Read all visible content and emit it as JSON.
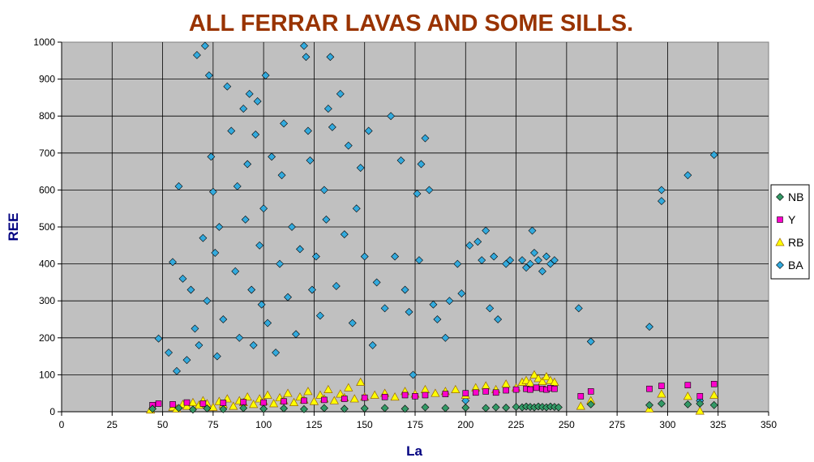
{
  "colors": {
    "title": "#993300",
    "axis_title": "#000080",
    "plot_bg": "#c0c0c0",
    "grid": "#000000",
    "NB": "#339966",
    "Y": "#ff00cc",
    "RB": "#ffff00",
    "BA": "#33aadd"
  },
  "chart_data": {
    "type": "scatter",
    "title": "ALL FERRAR LAVAS AND SOME SILLS.",
    "xlabel": "La",
    "ylabel": "REE",
    "xlim": [
      0,
      350
    ],
    "ylim": [
      0,
      1000
    ],
    "x_ticks": [
      "0",
      "25",
      "50",
      "75",
      "100",
      "125",
      "150",
      "175",
      "200",
      "225",
      "250",
      "275",
      "300",
      "325",
      "350"
    ],
    "y_ticks": [
      "0",
      "100",
      "200",
      "300",
      "400",
      "500",
      "600",
      "700",
      "800",
      "900",
      "1000"
    ],
    "grid": true,
    "legend_position": "right",
    "series": [
      {
        "name": "NB",
        "marker": "diamond",
        "points": [
          [
            45,
            8
          ],
          [
            58,
            10
          ],
          [
            65,
            6
          ],
          [
            72,
            9
          ],
          [
            80,
            7
          ],
          [
            90,
            10
          ],
          [
            100,
            8
          ],
          [
            110,
            9
          ],
          [
            120,
            7
          ],
          [
            130,
            10
          ],
          [
            140,
            8
          ],
          [
            150,
            9
          ],
          [
            160,
            10
          ],
          [
            170,
            8
          ],
          [
            180,
            12
          ],
          [
            190,
            10
          ],
          [
            200,
            11
          ],
          [
            210,
            10
          ],
          [
            215,
            12
          ],
          [
            220,
            11
          ],
          [
            225,
            13
          ],
          [
            228,
            12
          ],
          [
            230,
            14
          ],
          [
            232,
            13
          ],
          [
            234,
            12
          ],
          [
            236,
            14
          ],
          [
            238,
            13
          ],
          [
            240,
            12
          ],
          [
            242,
            14
          ],
          [
            244,
            13
          ],
          [
            246,
            12
          ],
          [
            262,
            20
          ],
          [
            291,
            18
          ],
          [
            297,
            22
          ],
          [
            310,
            20
          ],
          [
            316,
            22
          ],
          [
            323,
            18
          ]
        ]
      },
      {
        "name": "Y",
        "marker": "square",
        "points": [
          [
            45,
            18
          ],
          [
            48,
            22
          ],
          [
            55,
            20
          ],
          [
            62,
            25
          ],
          [
            70,
            22
          ],
          [
            80,
            24
          ],
          [
            90,
            26
          ],
          [
            100,
            25
          ],
          [
            110,
            28
          ],
          [
            120,
            30
          ],
          [
            130,
            32
          ],
          [
            140,
            35
          ],
          [
            150,
            38
          ],
          [
            160,
            40
          ],
          [
            170,
            45
          ],
          [
            175,
            42
          ],
          [
            180,
            45
          ],
          [
            190,
            48
          ],
          [
            200,
            50
          ],
          [
            205,
            52
          ],
          [
            210,
            55
          ],
          [
            215,
            52
          ],
          [
            220,
            58
          ],
          [
            225,
            60
          ],
          [
            230,
            62
          ],
          [
            232,
            60
          ],
          [
            235,
            65
          ],
          [
            238,
            62
          ],
          [
            240,
            60
          ],
          [
            242,
            64
          ],
          [
            244,
            62
          ],
          [
            257,
            42
          ],
          [
            262,
            55
          ],
          [
            291,
            62
          ],
          [
            297,
            70
          ],
          [
            310,
            72
          ],
          [
            316,
            42
          ],
          [
            323,
            75
          ]
        ]
      },
      {
        "name": "RB",
        "marker": "triangle",
        "points": [
          [
            44,
            5
          ],
          [
            55,
            12
          ],
          [
            57,
            8
          ],
          [
            60,
            20
          ],
          [
            62,
            15
          ],
          [
            65,
            25
          ],
          [
            68,
            18
          ],
          [
            70,
            30
          ],
          [
            72,
            22
          ],
          [
            75,
            12
          ],
          [
            78,
            28
          ],
          [
            80,
            20
          ],
          [
            82,
            35
          ],
          [
            85,
            15
          ],
          [
            88,
            30
          ],
          [
            90,
            25
          ],
          [
            92,
            40
          ],
          [
            95,
            20
          ],
          [
            98,
            35
          ],
          [
            100,
            28
          ],
          [
            102,
            45
          ],
          [
            105,
            22
          ],
          [
            108,
            38
          ],
          [
            110,
            30
          ],
          [
            112,
            50
          ],
          [
            115,
            25
          ],
          [
            118,
            40
          ],
          [
            120,
            32
          ],
          [
            122,
            55
          ],
          [
            125,
            28
          ],
          [
            128,
            45
          ],
          [
            130,
            35
          ],
          [
            132,
            60
          ],
          [
            135,
            30
          ],
          [
            138,
            48
          ],
          [
            140,
            38
          ],
          [
            142,
            65
          ],
          [
            145,
            35
          ],
          [
            148,
            80
          ],
          [
            150,
            40
          ],
          [
            155,
            45
          ],
          [
            160,
            50
          ],
          [
            165,
            40
          ],
          [
            170,
            55
          ],
          [
            175,
            48
          ],
          [
            180,
            60
          ],
          [
            185,
            50
          ],
          [
            190,
            55
          ],
          [
            195,
            60
          ],
          [
            200,
            45
          ],
          [
            205,
            65
          ],
          [
            210,
            70
          ],
          [
            215,
            60
          ],
          [
            220,
            75
          ],
          [
            225,
            65
          ],
          [
            228,
            80
          ],
          [
            230,
            85
          ],
          [
            232,
            78
          ],
          [
            234,
            100
          ],
          [
            236,
            90
          ],
          [
            238,
            82
          ],
          [
            240,
            95
          ],
          [
            242,
            85
          ],
          [
            244,
            80
          ],
          [
            257,
            15
          ],
          [
            262,
            30
          ],
          [
            291,
            8
          ],
          [
            297,
            48
          ],
          [
            310,
            42
          ],
          [
            316,
            2
          ],
          [
            323,
            45
          ]
        ]
      },
      {
        "name": "BA",
        "marker": "diamond",
        "points": [
          [
            48,
            198
          ],
          [
            53,
            160
          ],
          [
            55,
            405
          ],
          [
            57,
            110
          ],
          [
            58,
            610
          ],
          [
            60,
            360
          ],
          [
            62,
            140
          ],
          [
            64,
            330
          ],
          [
            66,
            225
          ],
          [
            67,
            965
          ],
          [
            68,
            180
          ],
          [
            70,
            470
          ],
          [
            71,
            990
          ],
          [
            72,
            300
          ],
          [
            73,
            910
          ],
          [
            74,
            690
          ],
          [
            75,
            595
          ],
          [
            76,
            430
          ],
          [
            77,
            150
          ],
          [
            78,
            500
          ],
          [
            80,
            250
          ],
          [
            82,
            880
          ],
          [
            84,
            760
          ],
          [
            86,
            380
          ],
          [
            87,
            610
          ],
          [
            88,
            200
          ],
          [
            90,
            820
          ],
          [
            91,
            520
          ],
          [
            92,
            670
          ],
          [
            93,
            860
          ],
          [
            94,
            330
          ],
          [
            95,
            180
          ],
          [
            96,
            750
          ],
          [
            97,
            840
          ],
          [
            98,
            450
          ],
          [
            99,
            290
          ],
          [
            100,
            550
          ],
          [
            101,
            910
          ],
          [
            102,
            240
          ],
          [
            104,
            690
          ],
          [
            106,
            160
          ],
          [
            108,
            400
          ],
          [
            109,
            640
          ],
          [
            110,
            780
          ],
          [
            112,
            310
          ],
          [
            114,
            500
          ],
          [
            116,
            210
          ],
          [
            118,
            440
          ],
          [
            120,
            990
          ],
          [
            121,
            960
          ],
          [
            122,
            760
          ],
          [
            123,
            680
          ],
          [
            124,
            330
          ],
          [
            126,
            420
          ],
          [
            128,
            260
          ],
          [
            130,
            600
          ],
          [
            131,
            520
          ],
          [
            132,
            820
          ],
          [
            133,
            960
          ],
          [
            134,
            770
          ],
          [
            136,
            340
          ],
          [
            138,
            860
          ],
          [
            140,
            480
          ],
          [
            142,
            720
          ],
          [
            144,
            240
          ],
          [
            146,
            550
          ],
          [
            148,
            660
          ],
          [
            150,
            420
          ],
          [
            152,
            760
          ],
          [
            154,
            180
          ],
          [
            156,
            350
          ],
          [
            160,
            280
          ],
          [
            163,
            800
          ],
          [
            165,
            420
          ],
          [
            168,
            680
          ],
          [
            170,
            330
          ],
          [
            172,
            270
          ],
          [
            174,
            100
          ],
          [
            176,
            590
          ],
          [
            177,
            410
          ],
          [
            178,
            670
          ],
          [
            180,
            740
          ],
          [
            182,
            600
          ],
          [
            184,
            290
          ],
          [
            186,
            250
          ],
          [
            190,
            200
          ],
          [
            192,
            300
          ],
          [
            196,
            400
          ],
          [
            198,
            320
          ],
          [
            200,
            30
          ],
          [
            202,
            450
          ],
          [
            206,
            460
          ],
          [
            208,
            410
          ],
          [
            210,
            490
          ],
          [
            212,
            280
          ],
          [
            214,
            420
          ],
          [
            216,
            250
          ],
          [
            220,
            400
          ],
          [
            222,
            410
          ],
          [
            228,
            410
          ],
          [
            230,
            390
          ],
          [
            232,
            400
          ],
          [
            233,
            490
          ],
          [
            234,
            430
          ],
          [
            236,
            410
          ],
          [
            238,
            380
          ],
          [
            240,
            420
          ],
          [
            242,
            400
          ],
          [
            244,
            410
          ],
          [
            256,
            280
          ],
          [
            262,
            190
          ],
          [
            291,
            230
          ],
          [
            297,
            600
          ],
          [
            297,
            570
          ],
          [
            310,
            640
          ],
          [
            316,
            30
          ],
          [
            323,
            695
          ]
        ]
      }
    ]
  }
}
